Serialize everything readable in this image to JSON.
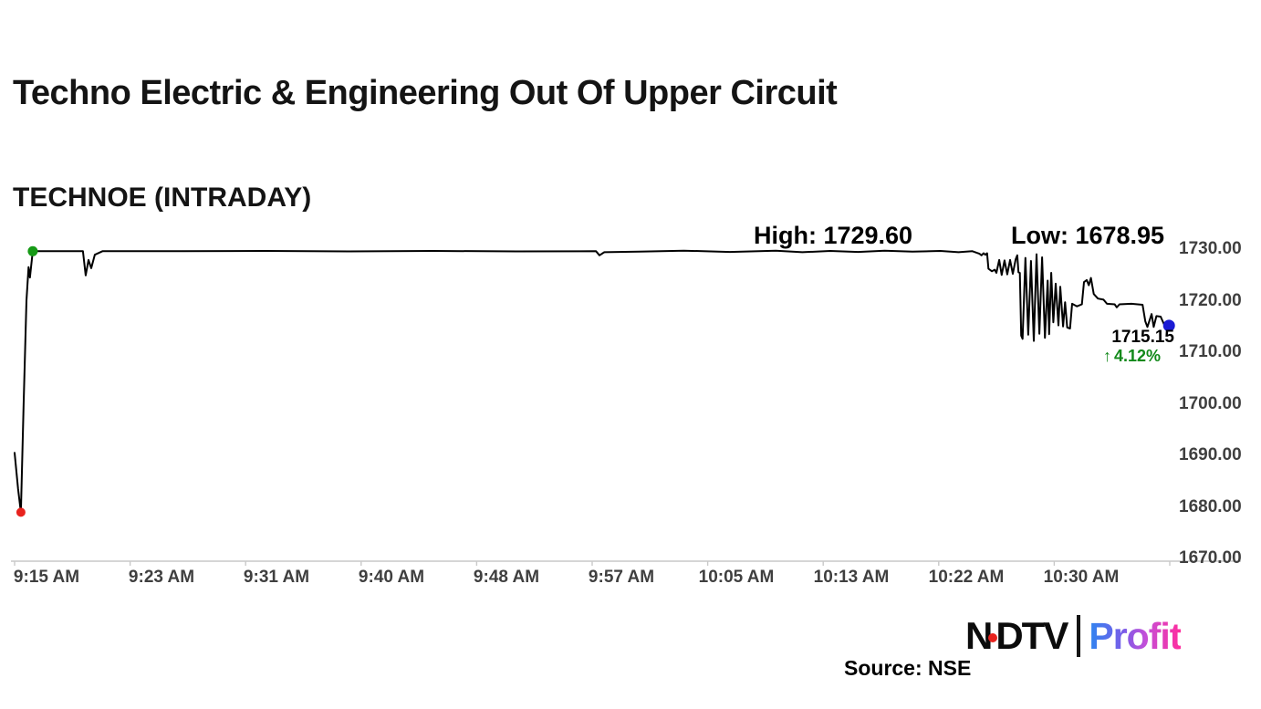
{
  "header": {
    "title": "Techno Electric & Engineering Out Of Upper Circuit",
    "subtitle": "TECHNOE (INTRADAY)"
  },
  "chart_data": {
    "type": "line",
    "title": "TECHNOE (INTRADAY)",
    "grid": false,
    "legend": false,
    "x_unit": "minutes after 9:15 AM",
    "x_axis": {
      "tick_labels": [
        "9:15 AM",
        "9:23 AM",
        "9:31 AM",
        "9:40 AM",
        "9:48 AM",
        "9:57 AM",
        "10:05 AM",
        "10:13 AM",
        "10:22 AM",
        "10:30 AM"
      ]
    },
    "y_axis": {
      "tick_labels": [
        "1730.00",
        "1720.00",
        "1710.00",
        "1700.00",
        "1690.00",
        "1680.00",
        "1670.00"
      ],
      "tick_values": [
        1730,
        1720,
        1710,
        1700,
        1690,
        1680,
        1670
      ]
    },
    "ylim": [
      1670,
      1730
    ],
    "series": [
      {
        "name": "TECHNOE",
        "points": [
          [
            0,
            1690.5
          ],
          [
            0.25,
            1683.5
          ],
          [
            0.45,
            1678.95
          ],
          [
            0.65,
            1700
          ],
          [
            0.85,
            1720
          ],
          [
            1.0,
            1726.5
          ],
          [
            1.1,
            1724.5
          ],
          [
            1.3,
            1729.6
          ],
          [
            2.5,
            1729.6
          ],
          [
            4.9,
            1729.6
          ],
          [
            5.1,
            1724.9
          ],
          [
            5.3,
            1727.9
          ],
          [
            5.5,
            1726.3
          ],
          [
            5.75,
            1728.9
          ],
          [
            6.3,
            1729.6
          ],
          [
            12,
            1729.6
          ],
          [
            18,
            1729.65
          ],
          [
            24,
            1729.55
          ],
          [
            30,
            1729.65
          ],
          [
            36,
            1729.55
          ],
          [
            41.7,
            1729.6
          ],
          [
            41.95,
            1728.8
          ],
          [
            42.3,
            1729.4
          ],
          [
            44.8,
            1729.5
          ],
          [
            48,
            1729.7
          ],
          [
            51.3,
            1729.45
          ],
          [
            54.6,
            1729.7
          ],
          [
            56.5,
            1729.4
          ],
          [
            58.5,
            1729.65
          ],
          [
            60.5,
            1729.45
          ],
          [
            62.4,
            1729.7
          ],
          [
            64.4,
            1729.5
          ],
          [
            66.4,
            1729.65
          ],
          [
            67.7,
            1729.4
          ],
          [
            68.7,
            1729.6
          ],
          [
            69.2,
            1729.1
          ],
          [
            69.35,
            1728.8
          ],
          [
            69.5,
            1729.2
          ],
          [
            69.63,
            1728.9
          ],
          [
            69.75,
            1729.2
          ],
          [
            69.85,
            1726.2
          ],
          [
            70.1,
            1725.7
          ],
          [
            70.3,
            1726.0
          ],
          [
            70.42,
            1725.4
          ],
          [
            70.62,
            1727.9
          ],
          [
            70.8,
            1725.0
          ],
          [
            71.0,
            1727.8
          ],
          [
            71.2,
            1725.1
          ],
          [
            71.4,
            1727.9
          ],
          [
            71.6,
            1725.2
          ],
          [
            71.8,
            1728.0
          ],
          [
            71.92,
            1728.8
          ],
          [
            72.0,
            1725.5
          ],
          [
            72.1,
            1725.4
          ],
          [
            72.2,
            1713.2
          ],
          [
            72.3,
            1712.6
          ],
          [
            72.5,
            1728.3
          ],
          [
            72.7,
            1713.4
          ],
          [
            72.9,
            1727.7
          ],
          [
            73.1,
            1712.2
          ],
          [
            73.3,
            1729.0
          ],
          [
            73.5,
            1713.6
          ],
          [
            73.7,
            1728.4
          ],
          [
            73.9,
            1712.8
          ],
          [
            74.1,
            1723.9
          ],
          [
            74.2,
            1713.5
          ],
          [
            74.35,
            1725.4
          ],
          [
            74.5,
            1715.8
          ],
          [
            74.67,
            1723.3
          ],
          [
            74.87,
            1715.2
          ],
          [
            75.0,
            1722.7
          ],
          [
            75.2,
            1715.0
          ],
          [
            75.35,
            1719.7
          ],
          [
            75.5,
            1714.8
          ],
          [
            75.7,
            1714.6
          ],
          [
            75.85,
            1719.4
          ],
          [
            76.2,
            1718.9
          ],
          [
            76.55,
            1719.3
          ],
          [
            76.7,
            1723.6
          ],
          [
            76.9,
            1724.0
          ],
          [
            77.05,
            1723.0
          ],
          [
            77.2,
            1724.4
          ],
          [
            77.4,
            1721.3
          ],
          [
            77.7,
            1720.4
          ],
          [
            78.1,
            1720.2
          ],
          [
            78.35,
            1719.4
          ],
          [
            78.9,
            1719.3
          ],
          [
            79.05,
            1718.7
          ],
          [
            79.25,
            1719.3
          ],
          [
            80.1,
            1719.4
          ],
          [
            80.9,
            1719.2
          ],
          [
            81.1,
            1716.0
          ],
          [
            81.25,
            1714.9
          ],
          [
            81.55,
            1717.4
          ],
          [
            81.7,
            1714.9
          ],
          [
            81.9,
            1717.0
          ],
          [
            82.2,
            1716.9
          ],
          [
            82.45,
            1715.4
          ],
          [
            82.8,
            1715.15
          ]
        ]
      }
    ],
    "annotations": {
      "high_label": "High: 1729.60",
      "low_label": "Low: 1678.95",
      "high": 1729.6,
      "low": 1678.95,
      "last_price_label": "1715.15",
      "last_price": 1715.15,
      "change_arrow": "↑",
      "change_pct_label": "4.12%",
      "change_pct": 4.12
    },
    "markers": [
      {
        "name": "open-low-dot",
        "t": 0.45,
        "price": 1678.95,
        "color": "red",
        "r": 5
      },
      {
        "name": "open-high-dot",
        "t": 1.3,
        "price": 1729.6,
        "color": "green",
        "r": 5.5
      },
      {
        "name": "last-price-dot",
        "t": 82.8,
        "price": 1715.15,
        "color": "blue",
        "r": 6.5
      }
    ]
  },
  "footer": {
    "source": "Source: NSE",
    "logo": {
      "ndtv_n": "N",
      "ndtv_dtv": "DTV",
      "profit": "Profit"
    }
  },
  "colors": {
    "line": "#000000",
    "axis": "#c9c9c9",
    "axis_text": "#3f3f3f",
    "red": "#e8231e",
    "green": "#12891a",
    "green_dot": "#169a16",
    "blue": "#1b1bd4",
    "title_text": "#141414",
    "logo_black": "#0b0b0b",
    "profit_gradient_start": "#2e86f0",
    "profit_gradient_end": "#ff2e9e"
  }
}
